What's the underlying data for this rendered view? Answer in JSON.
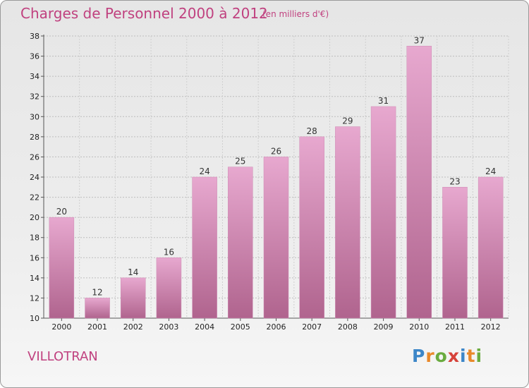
{
  "title": "Charges de Personnel 2000 à 2012",
  "subtitle": "(en milliers d'€)",
  "location": "VILLOTRAN",
  "logo": {
    "letters": [
      "P",
      "r",
      "o",
      "x",
      "i",
      "t",
      "i"
    ],
    "colors": [
      "#3c86c8",
      "#e9892a",
      "#6aab3f",
      "#d6423a",
      "#3c86c8",
      "#e9892a",
      "#6aab3f"
    ]
  },
  "colors": {
    "accent": "#c0417f",
    "bar_top": "#e7a8cf",
    "bar_bottom": "#b0648e"
  },
  "chart_data": {
    "type": "bar",
    "title": "Charges de Personnel 2000 à 2012",
    "subtitle": "(en milliers d'€)",
    "categories": [
      "2000",
      "2001",
      "2002",
      "2003",
      "2004",
      "2005",
      "2006",
      "2007",
      "2008",
      "2009",
      "2010",
      "2011",
      "2012"
    ],
    "values": [
      20,
      12,
      14,
      16,
      24,
      25,
      26,
      28,
      29,
      31,
      37,
      23,
      24
    ],
    "ylim": [
      10,
      38
    ],
    "yticks": [
      10,
      12,
      14,
      16,
      18,
      20,
      22,
      24,
      26,
      28,
      30,
      32,
      34,
      36,
      38
    ],
    "grid": true,
    "xlabel": "",
    "ylabel": ""
  }
}
